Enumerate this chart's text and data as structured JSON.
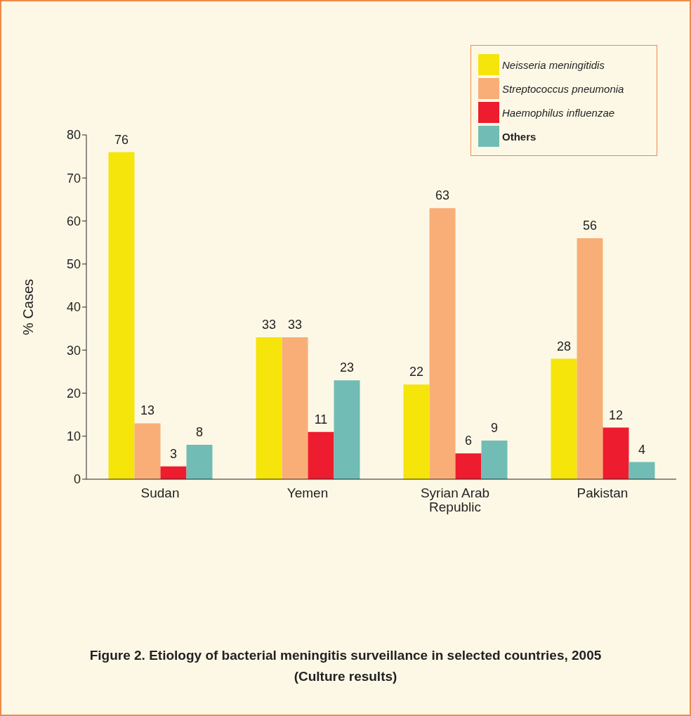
{
  "chart_data": {
    "type": "bar",
    "title": "Figure 2.  Etiology of bacterial meningitis surveillance in selected countries, 2005",
    "subtitle": "(Culture results)",
    "ylabel": "% Cases",
    "categories": [
      "Sudan",
      "Yemen",
      "Syrian Arab Republic",
      "Pakistan"
    ],
    "series": [
      {
        "name": "Neisseria meningitidis",
        "color": "#f5e50a",
        "values": [
          76,
          33,
          22,
          28
        ]
      },
      {
        "name": "Streptococcus pneumonia",
        "color": "#f9ae78",
        "values": [
          13,
          33,
          63,
          56
        ]
      },
      {
        "name": "Haemophilus influenzae",
        "color": "#ed1c2e",
        "values": [
          3,
          11,
          6,
          12
        ]
      },
      {
        "name": "Others",
        "color": "#71bdb5",
        "values": [
          8,
          23,
          9,
          4
        ]
      }
    ],
    "ylim": [
      0,
      80
    ],
    "yticks": [
      0,
      10,
      20,
      30,
      40,
      50,
      60,
      70,
      80
    ],
    "grid": false,
    "legend": "top right",
    "data_labels": true
  }
}
